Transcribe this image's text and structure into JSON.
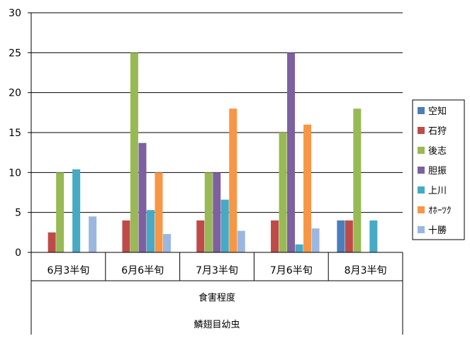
{
  "chart_data": {
    "type": "bar",
    "categories": [
      "6月3半旬",
      "6月6半旬",
      "7月3半旬",
      "7月6半旬",
      "8月3半旬"
    ],
    "category_group_label": "食害程度",
    "category_supergroup_label": "鱗翅目幼虫",
    "ylim": [
      0,
      30
    ],
    "yticks": [
      0,
      5,
      10,
      15,
      20,
      25,
      30
    ],
    "grid": true,
    "legend_position": "right",
    "series": [
      {
        "name": "空知",
        "color": "#4a7ebb",
        "values": [
          0,
          0,
          0,
          0,
          4
        ]
      },
      {
        "name": "石狩",
        "color": "#be4b48",
        "values": [
          2.5,
          4,
          4,
          4,
          4
        ]
      },
      {
        "name": "後志",
        "color": "#98b954",
        "values": [
          10,
          25,
          10,
          15,
          18
        ]
      },
      {
        "name": "胆振",
        "color": "#7d60a0",
        "values": [
          0,
          13.7,
          10,
          25,
          0
        ]
      },
      {
        "name": "上川",
        "color": "#46aac5",
        "values": [
          10.4,
          5.3,
          6.6,
          1,
          4
        ]
      },
      {
        "name": "ｵﾎｰﾂｸ",
        "color": "#f79646",
        "values": [
          0,
          10,
          18,
          16,
          0
        ]
      },
      {
        "name": "十勝",
        "color": "#9bb7e0",
        "values": [
          4.5,
          2.3,
          2.7,
          3,
          0
        ]
      }
    ]
  }
}
